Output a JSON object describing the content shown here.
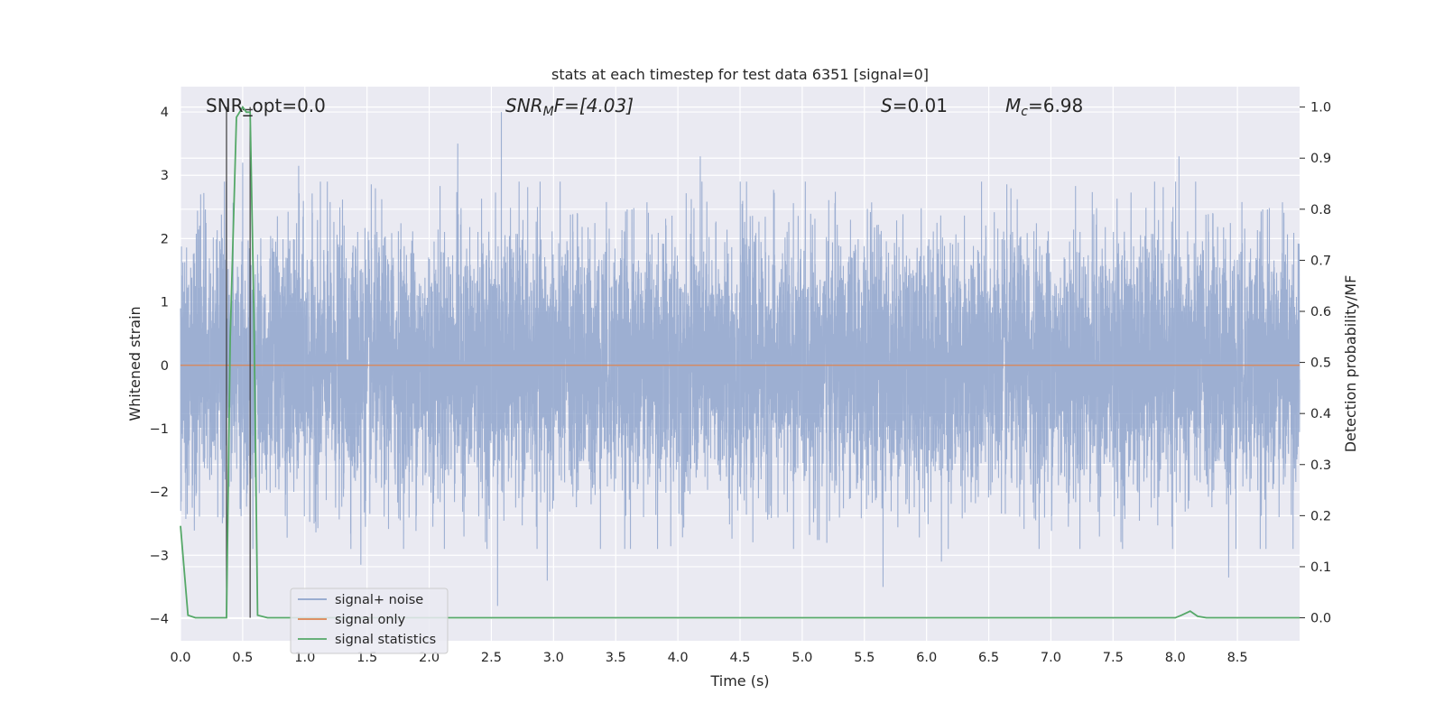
{
  "chart_data": {
    "type": "line",
    "title": "stats at each timestep for test data 6351 [signal=0]",
    "xlabel": "Time (s)",
    "ylabel": "Whitened strain",
    "ylabel_right": "Detection probability/MF",
    "xlim": [
      0.0,
      9.0
    ],
    "ylim": [
      -4.35,
      4.4
    ],
    "ylim_right": [
      -0.045,
      1.04
    ],
    "x_ticks": [
      "0.0",
      "0.5",
      "1.0",
      "1.5",
      "2.0",
      "2.5",
      "3.0",
      "3.5",
      "4.0",
      "4.5",
      "5.0",
      "5.5",
      "6.0",
      "6.5",
      "7.0",
      "7.5",
      "8.0",
      "8.5"
    ],
    "y_ticks": [
      "4",
      "3",
      "2",
      "1",
      "0",
      "−1",
      "−2",
      "−3",
      "−4"
    ],
    "y_right_ticks": [
      "1.0",
      "0.9",
      "0.8",
      "0.7",
      "0.6",
      "0.5",
      "0.4",
      "0.3",
      "0.2",
      "0.1",
      "0.0"
    ],
    "grid": true,
    "legend_position": "lower-left",
    "annotations": {
      "snr_opt": "SNR_opt=0.0",
      "snr_mf_base": "SNR",
      "snr_mf_sub": "M",
      "snr_mf_rest": "F=[4.03]",
      "s_italic": "S",
      "s_rest": "=0.01",
      "mc_base": "M",
      "mc_sub": "c",
      "mc_rest": "=6.98"
    },
    "series": [
      {
        "name": "signal+ noise",
        "color": "#8fa4cc",
        "description_axis": "left",
        "noise_sigma": 1.0,
        "sample_rate_hz": 1024,
        "peak_points": [
          [
            0.3,
            -2.4
          ],
          [
            0.5,
            3.2
          ],
          [
            0.95,
            3.15
          ],
          [
            1.45,
            -3.15
          ],
          [
            2.23,
            3.5
          ],
          [
            2.55,
            -3.8
          ],
          [
            2.58,
            4.0
          ],
          [
            2.95,
            -3.4
          ],
          [
            4.18,
            3.3
          ],
          [
            5.65,
            -3.5
          ],
          [
            6.12,
            -3.1
          ],
          [
            8.03,
            3.3
          ],
          [
            8.43,
            -3.35
          ]
        ]
      },
      {
        "name": "signal only",
        "color": "#dd8452",
        "description_axis": "left",
        "x": [
          0.0,
          9.0
        ],
        "y": [
          0.0,
          0.0
        ]
      },
      {
        "name": "signal statistics",
        "color": "#55a868",
        "description_axis": "right",
        "x": [
          0.0,
          0.06,
          0.12,
          0.2,
          0.3,
          0.37,
          0.4,
          0.45,
          0.5,
          0.53,
          0.56,
          0.59,
          0.62,
          0.7,
          1.0,
          2.0,
          3.0,
          4.0,
          5.0,
          6.0,
          7.0,
          7.5,
          8.0,
          8.05,
          8.12,
          8.18,
          8.25,
          8.5,
          9.0
        ],
        "y": [
          0.18,
          0.005,
          0.0,
          0.0,
          0.0,
          0.0,
          0.55,
          0.98,
          1.0,
          0.99,
          0.99,
          0.6,
          0.005,
          0.0,
          0.0,
          0.0,
          0.0,
          0.0,
          0.0,
          0.0,
          0.0,
          0.0,
          0.0,
          0.005,
          0.013,
          0.003,
          0.0,
          0.0,
          0.0
        ]
      }
    ],
    "vertical_markers_x": [
      0.37,
      0.56
    ],
    "horizontal_bar": {
      "x": [
        0.5,
        0.58
      ],
      "y": 0.995
    }
  }
}
